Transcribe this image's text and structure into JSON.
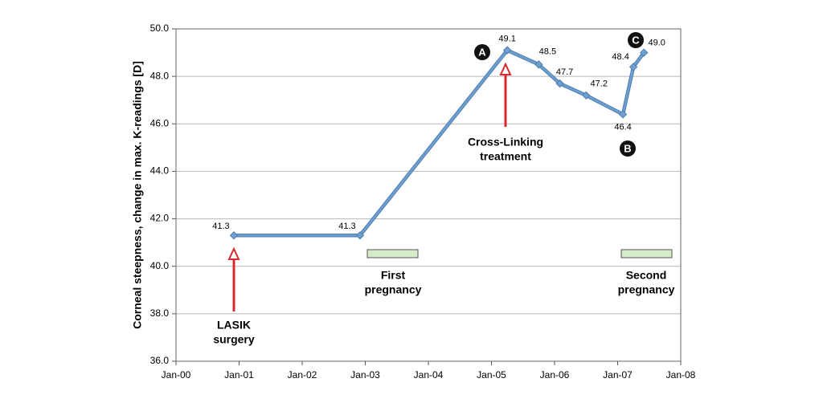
{
  "chart_data": {
    "type": "line",
    "y_label": "Corneal steepness, change in max. K-readings [D]",
    "x": [
      "2000-12",
      "2002-12",
      "2005-04",
      "2005-10",
      "2006-02",
      "2006-07",
      "2007-02",
      "2007-04",
      "2007-06"
    ],
    "series": [
      {
        "name": "max. K-readings",
        "color": "#6f9fd0",
        "values": [
          41.3,
          41.3,
          49.1,
          48.5,
          47.7,
          47.2,
          46.4,
          48.4,
          49.0
        ],
        "value_labels": [
          "41.3",
          "41.3",
          "49.1",
          "48.5",
          "47.7",
          "47.2",
          "46.4",
          "48.4",
          "49.0"
        ]
      }
    ],
    "xlim": [
      "2000-01",
      "2008-01"
    ],
    "xticks": [
      {
        "value": "2000-01",
        "label": "Jan-00"
      },
      {
        "value": "2001-01",
        "label": "Jan-01"
      },
      {
        "value": "2002-01",
        "label": "Jan-02"
      },
      {
        "value": "2003-01",
        "label": "Jan-03"
      },
      {
        "value": "2004-01",
        "label": "Jan-04"
      },
      {
        "value": "2005-01",
        "label": "Jan-05"
      },
      {
        "value": "2006-01",
        "label": "Jan-06"
      },
      {
        "value": "2007-01",
        "label": "Jan-07"
      },
      {
        "value": "2008-01",
        "label": "Jan-08"
      }
    ],
    "ylim": [
      36,
      50
    ],
    "yticks": [
      {
        "value": 36,
        "label": "36.0"
      },
      {
        "value": 38,
        "label": "38.0"
      },
      {
        "value": 40,
        "label": "40.0"
      },
      {
        "value": 42,
        "label": "42.0"
      },
      {
        "value": 44,
        "label": "44.0"
      },
      {
        "value": 46,
        "label": "46.0"
      },
      {
        "value": 48,
        "label": "48.0"
      },
      {
        "value": 50,
        "label": "50.0"
      }
    ],
    "grid": true,
    "annotations": [
      {
        "lines": [
          "LASIK",
          "surgery"
        ],
        "color": "#d9272e"
      },
      {
        "lines": [
          "Cross-Linking",
          "treatment"
        ],
        "color": "#d9272e"
      },
      {
        "lines": [
          "First",
          "pregnancy"
        ],
        "color": "#2e9a5c"
      },
      {
        "lines": [
          "Second",
          "pregnancy"
        ],
        "color": "#2e9a5c"
      }
    ],
    "markers": [
      "A",
      "B",
      "C"
    ]
  }
}
